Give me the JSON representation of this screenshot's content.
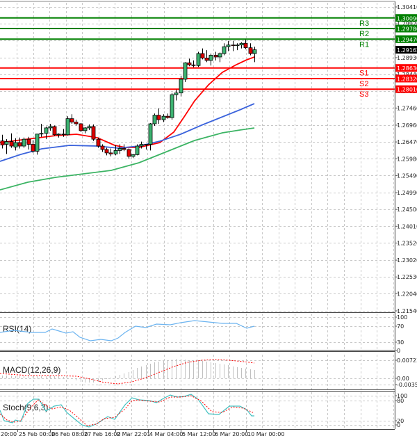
{
  "chart_data": {
    "type": "candlestick",
    "title": "",
    "timeframe_labels": [
      "20:00",
      "25 Feb 00:00",
      "26 Feb 08:00",
      "27 Feb 16:00",
      "2 Mar 22:01",
      "4 Mar 04:00",
      "5 Mar 12:00",
      "6 Mar 20:00",
      "10 Mar 00:00"
    ],
    "price_axis": {
      "ticks": [
        "1.30410",
        "1.29920",
        "1.29430",
        "1.28930",
        "1.28440",
        "1.27950",
        "1.27460",
        "1.26960",
        "1.26470",
        "1.25980",
        "1.25490",
        "1.24990",
        "1.24500",
        "1.24010",
        "1.23520",
        "1.23020",
        "1.22530",
        "1.22040",
        "1.21540"
      ],
      "ylim": [
        1.2154,
        1.3041
      ],
      "current_price": "1.29162"
    },
    "levels": [
      {
        "name": "R3",
        "value": "1.30090",
        "color": "#008000"
      },
      {
        "name": "R2",
        "value": "1.29780",
        "color": "#008000"
      },
      {
        "name": "R1",
        "value": "1.29470",
        "color": "#008000"
      },
      {
        "name": "S1",
        "value": "1.28630",
        "color": "#ff0000"
      },
      {
        "name": "S2",
        "value": "1.28320",
        "color": "#ff0000"
      },
      {
        "name": "S3",
        "value": "1.28010",
        "color": "#ff0000"
      }
    ],
    "moving_averages": [
      {
        "name": "MA fast",
        "color": "#ff0000"
      },
      {
        "name": "MA medium",
        "color": "#3c64dc"
      },
      {
        "name": "MA slow",
        "color": "#3cb464"
      }
    ],
    "candles": [
      {
        "o": 1.265,
        "h": 1.2668,
        "l": 1.2628,
        "c": 1.2638
      },
      {
        "o": 1.264,
        "h": 1.2655,
        "l": 1.2612,
        "c": 1.2648
      },
      {
        "o": 1.2648,
        "h": 1.2672,
        "l": 1.263,
        "c": 1.2635
      },
      {
        "o": 1.2632,
        "h": 1.2658,
        "l": 1.2622,
        "c": 1.2645
      },
      {
        "o": 1.2645,
        "h": 1.266,
        "l": 1.2628,
        "c": 1.2635
      },
      {
        "o": 1.2635,
        "h": 1.266,
        "l": 1.263,
        "c": 1.2655
      },
      {
        "o": 1.2655,
        "h": 1.2662,
        "l": 1.2625,
        "c": 1.264
      },
      {
        "o": 1.264,
        "h": 1.2652,
        "l": 1.2615,
        "c": 1.262
      },
      {
        "o": 1.262,
        "h": 1.267,
        "l": 1.261,
        "c": 1.267
      },
      {
        "o": 1.267,
        "h": 1.27,
        "l": 1.2662,
        "c": 1.2672
      },
      {
        "o": 1.2672,
        "h": 1.2692,
        "l": 1.2655,
        "c": 1.2688
      },
      {
        "o": 1.2688,
        "h": 1.27,
        "l": 1.268,
        "c": 1.2692
      },
      {
        "o": 1.2692,
        "h": 1.2695,
        "l": 1.2665,
        "c": 1.2668
      },
      {
        "o": 1.2668,
        "h": 1.2672,
        "l": 1.266,
        "c": 1.267
      },
      {
        "o": 1.267,
        "h": 1.2685,
        "l": 1.2662,
        "c": 1.2668
      },
      {
        "o": 1.2668,
        "h": 1.2722,
        "l": 1.2666,
        "c": 1.2715
      },
      {
        "o": 1.2715,
        "h": 1.2728,
        "l": 1.27,
        "c": 1.2705
      },
      {
        "o": 1.2705,
        "h": 1.2712,
        "l": 1.2695,
        "c": 1.27
      },
      {
        "o": 1.27,
        "h": 1.2702,
        "l": 1.2676,
        "c": 1.268
      },
      {
        "o": 1.268,
        "h": 1.269,
        "l": 1.2672,
        "c": 1.2688
      },
      {
        "o": 1.2688,
        "h": 1.2698,
        "l": 1.2682,
        "c": 1.2692
      },
      {
        "o": 1.2692,
        "h": 1.2698,
        "l": 1.265,
        "c": 1.2655
      },
      {
        "o": 1.2655,
        "h": 1.266,
        "l": 1.263,
        "c": 1.2635
      },
      {
        "o": 1.2635,
        "h": 1.264,
        "l": 1.2618,
        "c": 1.2625
      },
      {
        "o": 1.2625,
        "h": 1.263,
        "l": 1.2608,
        "c": 1.2615
      },
      {
        "o": 1.2615,
        "h": 1.2628,
        "l": 1.2605,
        "c": 1.2612
      },
      {
        "o": 1.2612,
        "h": 1.2638,
        "l": 1.2608,
        "c": 1.2622
      },
      {
        "o": 1.2622,
        "h": 1.264,
        "l": 1.2612,
        "c": 1.2628
      },
      {
        "o": 1.2628,
        "h": 1.264,
        "l": 1.262,
        "c": 1.2625
      },
      {
        "o": 1.2625,
        "h": 1.2628,
        "l": 1.2598,
        "c": 1.2605
      },
      {
        "o": 1.2605,
        "h": 1.2612,
        "l": 1.26,
        "c": 1.261
      },
      {
        "o": 1.261,
        "h": 1.264,
        "l": 1.2608,
        "c": 1.2635
      },
      {
        "o": 1.2635,
        "h": 1.2648,
        "l": 1.2628,
        "c": 1.264
      },
      {
        "o": 1.264,
        "h": 1.264,
        "l": 1.2625,
        "c": 1.264
      },
      {
        "o": 1.264,
        "h": 1.2702,
        "l": 1.2622,
        "c": 1.27
      },
      {
        "o": 1.27,
        "h": 1.273,
        "l": 1.2694,
        "c": 1.2725
      },
      {
        "o": 1.2725,
        "h": 1.2745,
        "l": 1.27,
        "c": 1.2712
      },
      {
        "o": 1.2712,
        "h": 1.2728,
        "l": 1.2705,
        "c": 1.2722
      },
      {
        "o": 1.2722,
        "h": 1.273,
        "l": 1.2715,
        "c": 1.2718
      },
      {
        "o": 1.2718,
        "h": 1.279,
        "l": 1.2712,
        "c": 1.2785
      },
      {
        "o": 1.2785,
        "h": 1.28,
        "l": 1.2768,
        "c": 1.279
      },
      {
        "o": 1.279,
        "h": 1.284,
        "l": 1.278,
        "c": 1.283
      },
      {
        "o": 1.283,
        "h": 1.288,
        "l": 1.2822,
        "c": 1.2878
      },
      {
        "o": 1.2878,
        "h": 1.289,
        "l": 1.2868,
        "c": 1.2872
      },
      {
        "o": 1.2872,
        "h": 1.2885,
        "l": 1.2865,
        "c": 1.287
      },
      {
        "o": 1.287,
        "h": 1.291,
        "l": 1.2866,
        "c": 1.2905
      },
      {
        "o": 1.2905,
        "h": 1.292,
        "l": 1.2888,
        "c": 1.2892
      },
      {
        "o": 1.2892,
        "h": 1.2915,
        "l": 1.288,
        "c": 1.2885
      },
      {
        "o": 1.2885,
        "h": 1.2905,
        "l": 1.287,
        "c": 1.29
      },
      {
        "o": 1.29,
        "h": 1.291,
        "l": 1.2885,
        "c": 1.2895
      },
      {
        "o": 1.2895,
        "h": 1.2908,
        "l": 1.288,
        "c": 1.2905
      },
      {
        "o": 1.2905,
        "h": 1.2935,
        "l": 1.29,
        "c": 1.2925
      },
      {
        "o": 1.2925,
        "h": 1.2942,
        "l": 1.2912,
        "c": 1.293
      },
      {
        "o": 1.293,
        "h": 1.2942,
        "l": 1.2912,
        "c": 1.2928
      },
      {
        "o": 1.2928,
        "h": 1.2935,
        "l": 1.2915,
        "c": 1.293
      },
      {
        "o": 1.293,
        "h": 1.2938,
        "l": 1.292,
        "c": 1.2935
      },
      {
        "o": 1.2935,
        "h": 1.2945,
        "l": 1.2918,
        "c": 1.2922
      },
      {
        "o": 1.2922,
        "h": 1.2935,
        "l": 1.29,
        "c": 1.2905
      },
      {
        "o": 1.2905,
        "h": 1.2925,
        "l": 1.288,
        "c": 1.2916
      }
    ],
    "indicators": [
      {
        "name": "RSI(14)",
        "ticks": [
          "100",
          "70",
          "30",
          "0"
        ],
        "ylim": [
          0,
          100
        ],
        "color": "#6cb4f0"
      },
      {
        "name": "MACD(12,26,9)",
        "ticks": [
          "0.007236",
          "0.00",
          "-0.00354"
        ],
        "ylim": [
          -0.00354,
          0.007236
        ],
        "histogram_color": "#c0c0c0",
        "signal_color": "#ff0000"
      },
      {
        "name": "Stoch(9,6,3)",
        "ticks": [
          "100",
          "80",
          "20",
          "0"
        ],
        "ylim": [
          0,
          100
        ],
        "main_color": "#40c0c0",
        "signal_color": "#ff0000"
      }
    ]
  }
}
